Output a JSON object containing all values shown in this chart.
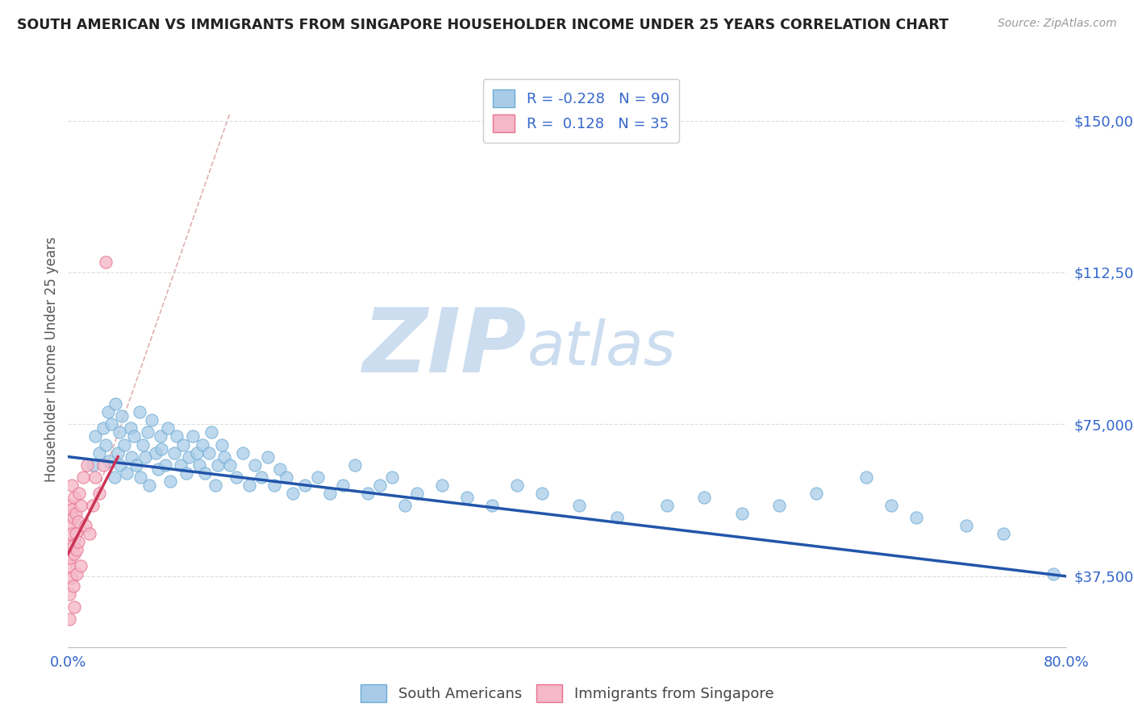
{
  "title": "SOUTH AMERICAN VS IMMIGRANTS FROM SINGAPORE HOUSEHOLDER INCOME UNDER 25 YEARS CORRELATION CHART",
  "source": "Source: ZipAtlas.com",
  "ylabel": "Householder Income Under 25 years",
  "xlim": [
    0.0,
    0.8
  ],
  "ylim": [
    20000,
    162000
  ],
  "yticks": [
    37500,
    75000,
    112500,
    150000
  ],
  "ytick_labels": [
    "$37,500",
    "$75,000",
    "$112,500",
    "$150,000"
  ],
  "xticks": [
    0.0,
    0.1,
    0.2,
    0.3,
    0.4,
    0.5,
    0.6,
    0.7,
    0.8
  ],
  "xtick_labels": [
    "0.0%",
    "",
    "",
    "",
    "",
    "",
    "",
    "",
    "80.0%"
  ],
  "blue_color": "#a8cce8",
  "blue_edge": "#6aaad4",
  "pink_color": "#f5b8c8",
  "pink_edge": "#e87090",
  "trend_blue": "#2255aa",
  "trend_pink": "#cc3355",
  "diag_color": "#e0b0b0",
  "R_blue": -0.228,
  "N_blue": 90,
  "R_pink": 0.128,
  "N_pink": 35,
  "watermark": "ZIPatlas",
  "watermark_color": "#ccddf0",
  "title_color": "#222222",
  "axis_color": "#3366cc",
  "grid_color": "#dddddd",
  "blue_scatter_x": [
    0.02,
    0.022,
    0.025,
    0.028,
    0.03,
    0.032,
    0.033,
    0.035,
    0.037,
    0.038,
    0.04,
    0.041,
    0.042,
    0.043,
    0.045,
    0.047,
    0.05,
    0.051,
    0.053,
    0.055,
    0.057,
    0.058,
    0.06,
    0.062,
    0.064,
    0.065,
    0.067,
    0.07,
    0.072,
    0.074,
    0.075,
    0.078,
    0.08,
    0.082,
    0.085,
    0.087,
    0.09,
    0.092,
    0.095,
    0.097,
    0.1,
    0.103,
    0.105,
    0.108,
    0.11,
    0.113,
    0.115,
    0.118,
    0.12,
    0.123,
    0.125,
    0.13,
    0.135,
    0.14,
    0.145,
    0.15,
    0.155,
    0.16,
    0.165,
    0.17,
    0.175,
    0.18,
    0.19,
    0.2,
    0.21,
    0.22,
    0.23,
    0.24,
    0.25,
    0.26,
    0.27,
    0.28,
    0.3,
    0.32,
    0.34,
    0.36,
    0.38,
    0.41,
    0.44,
    0.48,
    0.51,
    0.54,
    0.57,
    0.6,
    0.64,
    0.66,
    0.68,
    0.72,
    0.75,
    0.79
  ],
  "blue_scatter_y": [
    65000,
    72000,
    68000,
    74000,
    70000,
    78000,
    66000,
    75000,
    62000,
    80000,
    68000,
    73000,
    65000,
    77000,
    70000,
    63000,
    74000,
    67000,
    72000,
    65000,
    78000,
    62000,
    70000,
    67000,
    73000,
    60000,
    76000,
    68000,
    64000,
    72000,
    69000,
    65000,
    74000,
    61000,
    68000,
    72000,
    65000,
    70000,
    63000,
    67000,
    72000,
    68000,
    65000,
    70000,
    63000,
    68000,
    73000,
    60000,
    65000,
    70000,
    67000,
    65000,
    62000,
    68000,
    60000,
    65000,
    62000,
    67000,
    60000,
    64000,
    62000,
    58000,
    60000,
    62000,
    58000,
    60000,
    65000,
    58000,
    60000,
    62000,
    55000,
    58000,
    60000,
    57000,
    55000,
    60000,
    58000,
    55000,
    52000,
    55000,
    57000,
    53000,
    55000,
    58000,
    62000,
    55000,
    52000,
    50000,
    48000,
    38000
  ],
  "pink_scatter_x": [
    0.001,
    0.001,
    0.001,
    0.002,
    0.002,
    0.002,
    0.002,
    0.003,
    0.003,
    0.003,
    0.003,
    0.004,
    0.004,
    0.004,
    0.005,
    0.005,
    0.005,
    0.006,
    0.006,
    0.007,
    0.007,
    0.008,
    0.008,
    0.009,
    0.01,
    0.01,
    0.012,
    0.014,
    0.015,
    0.017,
    0.02,
    0.022,
    0.025,
    0.028,
    0.03
  ],
  "pink_scatter_y": [
    27000,
    33000,
    40000,
    45000,
    50000,
    55000,
    42000,
    37000,
    48000,
    54000,
    60000,
    35000,
    45000,
    52000,
    30000,
    43000,
    57000,
    48000,
    53000,
    38000,
    44000,
    51000,
    46000,
    58000,
    40000,
    55000,
    62000,
    50000,
    65000,
    48000,
    55000,
    62000,
    58000,
    65000,
    115000
  ],
  "blue_trend_x": [
    0.0,
    0.8
  ],
  "blue_trend_y": [
    67000,
    37500
  ],
  "pink_trend_x": [
    0.0,
    0.04
  ],
  "pink_trend_y": [
    43000,
    67000
  ],
  "diag_line_x": [
    0.0,
    0.13
  ],
  "diag_line_y": [
    37500,
    152000
  ]
}
